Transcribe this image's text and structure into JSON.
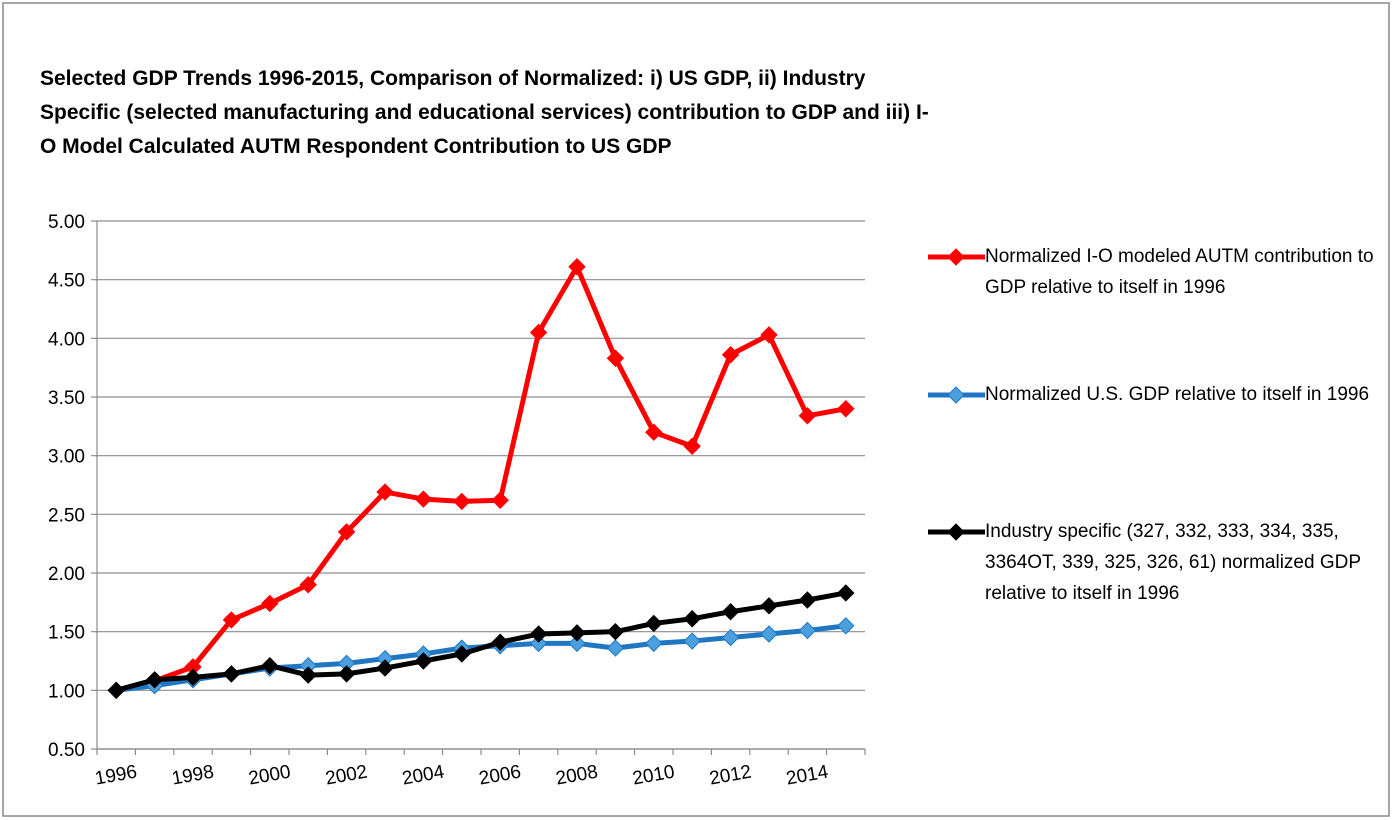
{
  "chart_data": {
    "type": "line",
    "title": "Selected GDP Trends 1996-2015, Comparison of Normalized: i) US GDP, ii) Industry Specific (selected manufacturing and educational services) contribution to GDP and iii) I-O Model Calculated AUTM Respondent Contribution to US GDP",
    "categories": [
      "1996",
      null,
      "1998",
      null,
      "2000",
      null,
      "2002",
      null,
      "2004",
      null,
      "2006",
      null,
      "2008",
      null,
      "2010",
      null,
      "2012",
      null,
      "2014",
      null
    ],
    "series": [
      {
        "name": "Normalized I-O modeled AUTM contribution to GDP relative to itself in 1996",
        "color": "#ff0000",
        "values": [
          1.0,
          1.08,
          1.2,
          1.6,
          1.74,
          1.9,
          2.35,
          2.69,
          2.63,
          2.61,
          2.62,
          4.05,
          4.61,
          3.83,
          3.2,
          3.08,
          3.86,
          4.03,
          3.34,
          3.4
        ]
      },
      {
        "name": "Normalized U.S. GDP relative to itself in 1996",
        "color": "#1f77c4",
        "values": [
          1.0,
          1.04,
          1.09,
          1.14,
          1.19,
          1.21,
          1.23,
          1.27,
          1.31,
          1.36,
          1.38,
          1.4,
          1.4,
          1.36,
          1.4,
          1.42,
          1.45,
          1.48,
          1.51,
          1.55
        ]
      },
      {
        "name": "Industry specific (327, 332, 333, 334, 335, 3364OT, 339, 325, 326, 61) normalized GDP relative to itself in 1996",
        "color": "#000000",
        "values": [
          1.0,
          1.09,
          1.11,
          1.14,
          1.21,
          1.13,
          1.14,
          1.19,
          1.25,
          1.31,
          1.41,
          1.48,
          1.49,
          1.5,
          1.57,
          1.61,
          1.67,
          1.72,
          1.77,
          1.83
        ]
      }
    ],
    "ylim": [
      0.5,
      5
    ],
    "yticks": [
      {
        "value": 0.5,
        "label": "0.50"
      },
      {
        "value": 1,
        "label": "1.00"
      },
      {
        "value": 1.5,
        "label": "1.50"
      },
      {
        "value": 2,
        "label": "2.00"
      },
      {
        "value": 2.5,
        "label": "2.50"
      },
      {
        "value": 3,
        "label": "3.00"
      },
      {
        "value": 3.5,
        "label": "3.50"
      },
      {
        "value": 4,
        "label": "4.00"
      },
      {
        "value": 4.5,
        "label": "4.50"
      },
      {
        "value": 5,
        "label": "5.00"
      }
    ],
    "grid": true,
    "legend": "right"
  }
}
